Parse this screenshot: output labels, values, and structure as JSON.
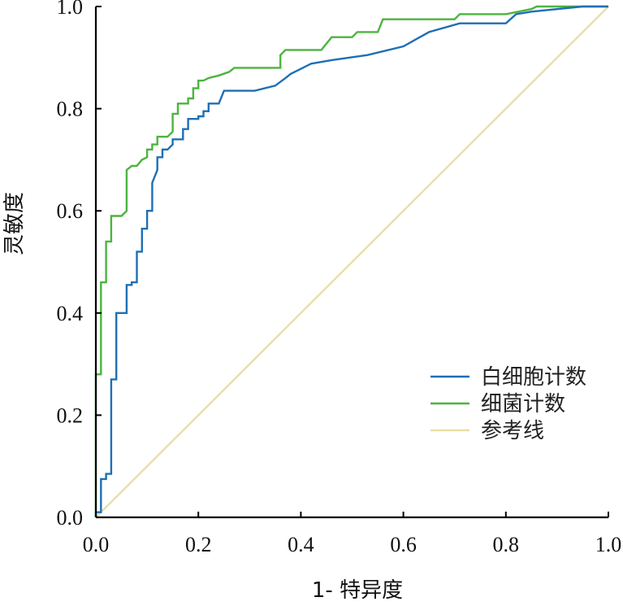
{
  "chart_data": {
    "type": "line",
    "xlabel": "1- 特异度",
    "ylabel": "灵敏度",
    "xlim": [
      0.0,
      1.0
    ],
    "ylim": [
      0.0,
      1.0
    ],
    "x_ticks": [
      "0.0",
      "0.2",
      "0.4",
      "0.6",
      "0.8",
      "1.0"
    ],
    "y_ticks": [
      "0.0",
      "0.2",
      "0.4",
      "0.6",
      "0.8",
      "1.0"
    ],
    "grid": false,
    "legend_position": "bottom-right",
    "series": [
      {
        "name": "白细胞计数",
        "color": "#1f6fb5",
        "points": [
          [
            0.0,
            0.0
          ],
          [
            0.0,
            0.01
          ],
          [
            0.01,
            0.01
          ],
          [
            0.01,
            0.075
          ],
          [
            0.02,
            0.075
          ],
          [
            0.02,
            0.085
          ],
          [
            0.03,
            0.085
          ],
          [
            0.03,
            0.27
          ],
          [
            0.04,
            0.27
          ],
          [
            0.04,
            0.4
          ],
          [
            0.06,
            0.4
          ],
          [
            0.06,
            0.455
          ],
          [
            0.07,
            0.455
          ],
          [
            0.07,
            0.46
          ],
          [
            0.08,
            0.46
          ],
          [
            0.08,
            0.52
          ],
          [
            0.09,
            0.52
          ],
          [
            0.09,
            0.565
          ],
          [
            0.1,
            0.565
          ],
          [
            0.1,
            0.6
          ],
          [
            0.11,
            0.6
          ],
          [
            0.11,
            0.655
          ],
          [
            0.12,
            0.68
          ],
          [
            0.12,
            0.705
          ],
          [
            0.13,
            0.705
          ],
          [
            0.13,
            0.72
          ],
          [
            0.14,
            0.72
          ],
          [
            0.15,
            0.73
          ],
          [
            0.15,
            0.74
          ],
          [
            0.17,
            0.74
          ],
          [
            0.17,
            0.76
          ],
          [
            0.18,
            0.76
          ],
          [
            0.18,
            0.78
          ],
          [
            0.2,
            0.78
          ],
          [
            0.2,
            0.785
          ],
          [
            0.21,
            0.785
          ],
          [
            0.21,
            0.795
          ],
          [
            0.22,
            0.795
          ],
          [
            0.22,
            0.81
          ],
          [
            0.24,
            0.81
          ],
          [
            0.25,
            0.835
          ],
          [
            0.31,
            0.835
          ],
          [
            0.35,
            0.845
          ],
          [
            0.37,
            0.86
          ],
          [
            0.38,
            0.868
          ],
          [
            0.42,
            0.888
          ],
          [
            0.46,
            0.895
          ],
          [
            0.53,
            0.905
          ],
          [
            0.6,
            0.922
          ],
          [
            0.65,
            0.95
          ],
          [
            0.71,
            0.967
          ],
          [
            0.8,
            0.967
          ],
          [
            0.82,
            0.985
          ],
          [
            0.85,
            0.99
          ],
          [
            0.95,
            1.0
          ],
          [
            1.0,
            1.0
          ]
        ]
      },
      {
        "name": "细菌计数",
        "color": "#4cb43f",
        "points": [
          [
            0.0,
            0.0
          ],
          [
            0.0,
            0.28
          ],
          [
            0.01,
            0.28
          ],
          [
            0.01,
            0.46
          ],
          [
            0.02,
            0.46
          ],
          [
            0.02,
            0.54
          ],
          [
            0.03,
            0.54
          ],
          [
            0.03,
            0.59
          ],
          [
            0.05,
            0.59
          ],
          [
            0.06,
            0.6
          ],
          [
            0.06,
            0.68
          ],
          [
            0.07,
            0.688
          ],
          [
            0.08,
            0.688
          ],
          [
            0.09,
            0.7
          ],
          [
            0.1,
            0.705
          ],
          [
            0.1,
            0.72
          ],
          [
            0.11,
            0.72
          ],
          [
            0.11,
            0.73
          ],
          [
            0.12,
            0.73
          ],
          [
            0.12,
            0.745
          ],
          [
            0.14,
            0.745
          ],
          [
            0.15,
            0.755
          ],
          [
            0.15,
            0.79
          ],
          [
            0.16,
            0.79
          ],
          [
            0.16,
            0.81
          ],
          [
            0.18,
            0.81
          ],
          [
            0.18,
            0.82
          ],
          [
            0.19,
            0.82
          ],
          [
            0.19,
            0.84
          ],
          [
            0.2,
            0.84
          ],
          [
            0.2,
            0.855
          ],
          [
            0.21,
            0.855
          ],
          [
            0.22,
            0.86
          ],
          [
            0.24,
            0.865
          ],
          [
            0.26,
            0.872
          ],
          [
            0.27,
            0.88
          ],
          [
            0.36,
            0.88
          ],
          [
            0.36,
            0.905
          ],
          [
            0.37,
            0.915
          ],
          [
            0.44,
            0.915
          ],
          [
            0.46,
            0.94
          ],
          [
            0.5,
            0.94
          ],
          [
            0.51,
            0.95
          ],
          [
            0.55,
            0.95
          ],
          [
            0.56,
            0.975
          ],
          [
            0.7,
            0.975
          ],
          [
            0.71,
            0.985
          ],
          [
            0.8,
            0.985
          ],
          [
            0.85,
            0.995
          ],
          [
            0.86,
            1.0
          ],
          [
            1.0,
            1.0
          ]
        ]
      },
      {
        "name": "参考线",
        "color": "#e8dfa8",
        "points": [
          [
            0.0,
            0.0
          ],
          [
            1.0,
            1.0
          ]
        ]
      }
    ]
  }
}
